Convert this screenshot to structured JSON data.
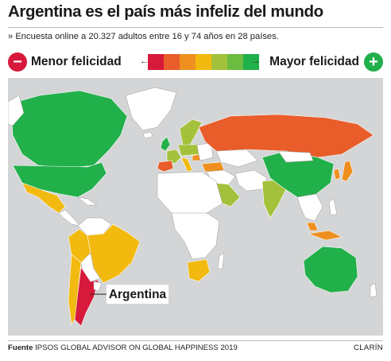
{
  "title": "Argentina es el país más infeliz del mundo",
  "subtitle": "» Encuesta online a 20.327 adultos entre 16 y 74 años en 28 países.",
  "legend": {
    "left_label": "Menor felicidad",
    "right_label": "Mayor felicidad",
    "scale_colors": [
      "#d7193c",
      "#e85d2a",
      "#ef8f1f",
      "#f2b90f",
      "#a3c13a",
      "#6cbd3f",
      "#22b04b"
    ]
  },
  "map": {
    "callout_label": "Argentina",
    "colors": {
      "ocean": "#d4d5d6",
      "no_data": "#ffffff",
      "red": "#d7193c",
      "orange_red": "#e85d2a",
      "orange": "#ef8f1f",
      "yellow": "#f2b90f",
      "yellow_green": "#a3c13a",
      "green": "#22b04b"
    }
  },
  "footer": {
    "source_label": "Fuente",
    "source_text": "IPSOS GLOBAL ADVISOR ON GLOBAL HAPPINESS 2019",
    "brand": "CLARÍN"
  }
}
